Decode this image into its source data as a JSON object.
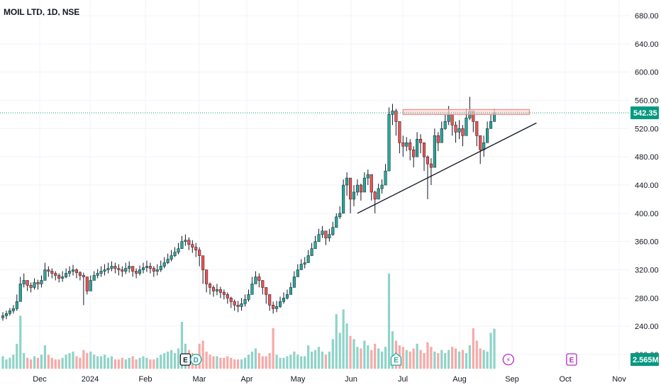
{
  "symbol_title": "MOIL LTD, 1D, NSE",
  "colors": {
    "up": "#26a69a",
    "down": "#ef5350",
    "wick": "#131722",
    "vol_up": "#8fd3c8",
    "vol_down": "#f7a9a7",
    "grid": "#f0f3fa",
    "last_price": "#089981",
    "resistance_fill": "#f9d7d6",
    "resistance_stroke": "#f28b82",
    "trendline": "#131722",
    "event_earnings": "#8e8e8e",
    "event_dividend": "#26a69a",
    "event_split": "#b02fbd"
  },
  "chart_data": {
    "type": "candlestick",
    "title": "MOIL LTD, 1D, NSE",
    "y_ticks": [
      "680.00",
      "640.00",
      "600.00",
      "560.00",
      "520.00",
      "480.00",
      "440.00",
      "400.00",
      "360.00",
      "320.00",
      "280.00",
      "240.00",
      "200.00"
    ],
    "x_ticks": [
      "Dec",
      "2024",
      "Feb",
      "Mar",
      "Apr",
      "May",
      "Jun",
      "Jul",
      "Aug",
      "Sep",
      "Oct",
      "Nov"
    ],
    "ylim": [
      190,
      695
    ],
    "grid": true,
    "last_price": 542.35,
    "last_price_label": "542.35",
    "volume_label": "2.565M",
    "closes": [
      255,
      258,
      262,
      265,
      275,
      300,
      305,
      298,
      295,
      302,
      300,
      305,
      320,
      318,
      315,
      312,
      308,
      310,
      315,
      318,
      320,
      316,
      312,
      310,
      290,
      305,
      312,
      315,
      318,
      320,
      322,
      325,
      322,
      320,
      318,
      322,
      325,
      318,
      315,
      320,
      323,
      325,
      322,
      318,
      320,
      325,
      330,
      335,
      340,
      345,
      350,
      360,
      362,
      356,
      352,
      348,
      340,
      320,
      300,
      295,
      290,
      292,
      288,
      285,
      280,
      275,
      270,
      268,
      272,
      278,
      285,
      300,
      310,
      305,
      295,
      285,
      270,
      265,
      268,
      275,
      280,
      285,
      295,
      310,
      320,
      328,
      330,
      340,
      350,
      360,
      370,
      375,
      365,
      370,
      380,
      395,
      400,
      440,
      450,
      420,
      430,
      440,
      430,
      450,
      455,
      430,
      420,
      435,
      440,
      460,
      540,
      545,
      530,
      500,
      495,
      500,
      490,
      480,
      505,
      500,
      480,
      470,
      465,
      510,
      500,
      520,
      530,
      540,
      525,
      515,
      520,
      510,
      535,
      545,
      530,
      510,
      490,
      500,
      520,
      530,
      542.35
    ],
    "highs": [
      260,
      262,
      266,
      270,
      285,
      310,
      315,
      305,
      302,
      308,
      306,
      312,
      330,
      325,
      322,
      318,
      315,
      318,
      322,
      325,
      327,
      322,
      318,
      316,
      305,
      312,
      318,
      321,
      325,
      328,
      330,
      332,
      330,
      328,
      325,
      330,
      332,
      325,
      322,
      326,
      330,
      333,
      330,
      325,
      328,
      333,
      338,
      343,
      348,
      352,
      358,
      368,
      370,
      366,
      362,
      358,
      352,
      335,
      310,
      302,
      298,
      300,
      296,
      292,
      288,
      282,
      278,
      276,
      280,
      285,
      292,
      310,
      318,
      315,
      305,
      295,
      285,
      275,
      276,
      282,
      288,
      292,
      302,
      318,
      328,
      335,
      338,
      348,
      358,
      368,
      378,
      382,
      375,
      378,
      388,
      400,
      410,
      448,
      458,
      430,
      440,
      448,
      442,
      458,
      462,
      445,
      432,
      442,
      448,
      470,
      550,
      555,
      548,
      520,
      510,
      508,
      505,
      495,
      515,
      512,
      495,
      482,
      478,
      520,
      515,
      530,
      540,
      552,
      540,
      530,
      532,
      525,
      548,
      565,
      545,
      525,
      505,
      510,
      530,
      540,
      548
    ],
    "lows": [
      248,
      250,
      255,
      258,
      262,
      290,
      295,
      290,
      288,
      292,
      292,
      295,
      310,
      310,
      308,
      305,
      302,
      303,
      308,
      310,
      312,
      308,
      305,
      270,
      285,
      295,
      305,
      308,
      310,
      312,
      315,
      318,
      315,
      312,
      310,
      314,
      316,
      310,
      308,
      312,
      315,
      317,
      315,
      310,
      312,
      317,
      322,
      328,
      332,
      338,
      342,
      350,
      354,
      348,
      344,
      338,
      325,
      300,
      288,
      285,
      282,
      284,
      280,
      278,
      272,
      266,
      262,
      260,
      262,
      268,
      275,
      290,
      300,
      295,
      285,
      272,
      262,
      258,
      260,
      266,
      272,
      278,
      285,
      300,
      310,
      320,
      322,
      330,
      340,
      350,
      360,
      365,
      355,
      360,
      368,
      385,
      392,
      415,
      425,
      400,
      410,
      425,
      418,
      435,
      440,
      418,
      400,
      420,
      428,
      448,
      520,
      525,
      510,
      485,
      480,
      488,
      475,
      465,
      490,
      485,
      460,
      420,
      440,
      495,
      488,
      505,
      518,
      525,
      510,
      500,
      505,
      495,
      520,
      532,
      515,
      495,
      470,
      480,
      505,
      520,
      530
    ],
    "volumes": [
      0.8,
      0.6,
      0.7,
      0.9,
      1.6,
      3.4,
      1.0,
      0.7,
      0.6,
      0.8,
      0.7,
      0.9,
      1.5,
      0.9,
      0.7,
      0.6,
      0.6,
      0.7,
      0.9,
      1.0,
      1.1,
      0.8,
      0.7,
      1.2,
      1.0,
      1.1,
      0.9,
      0.8,
      0.8,
      0.9,
      0.7,
      0.8,
      0.6,
      0.6,
      0.7,
      0.6,
      0.7,
      0.8,
      0.6,
      0.7,
      0.8,
      0.7,
      0.6,
      0.6,
      0.7,
      0.9,
      1.0,
      1.1,
      1.2,
      1.0,
      1.3,
      3.0,
      1.6,
      1.2,
      1.0,
      0.9,
      1.6,
      1.8,
      1.1,
      0.9,
      0.8,
      0.8,
      0.7,
      0.7,
      0.8,
      0.7,
      0.6,
      0.6,
      0.6,
      0.7,
      0.9,
      1.1,
      1.3,
      1.0,
      0.8,
      0.8,
      1.0,
      2.6,
      0.9,
      0.7,
      0.7,
      0.8,
      0.9,
      1.1,
      0.9,
      0.8,
      0.8,
      1.5,
      1.1,
      1.2,
      1.4,
      1.1,
      0.9,
      1.1,
      1.9,
      3.5,
      2.3,
      3.8,
      2.9,
      2.1,
      1.9,
      1.4,
      1.3,
      1.8,
      1.5,
      1.2,
      1.6,
      1.3,
      1.1,
      1.4,
      6.1,
      2.4,
      1.8,
      1.5,
      1.4,
      1.2,
      1.1,
      1.3,
      1.6,
      1.2,
      1.0,
      1.7,
      1.4,
      1.1,
      1.0,
      1.2,
      1.0,
      1.2,
      1.4,
      1.3,
      1.1,
      1.2,
      1.0,
      1.5,
      2.6,
      1.8,
      1.3,
      1.2,
      1.1,
      2.3,
      2.565
    ],
    "resistance_zone": {
      "from_index": 114,
      "to_index": 150,
      "low": 540,
      "high": 547
    },
    "trendline": {
      "from_index": 101,
      "from_price": 400,
      "to_index": 152,
      "to_price": 528
    },
    "events": [
      {
        "index": 52,
        "type": "earnings",
        "label": "E"
      },
      {
        "index": 55,
        "type": "dividend",
        "label": "D"
      },
      {
        "index": 112,
        "type": "earnings-green",
        "label": "E"
      },
      {
        "index": 144,
        "type": "split",
        "label": "⚡"
      },
      {
        "index": 162,
        "type": "earnings-future",
        "label": "E"
      }
    ]
  }
}
